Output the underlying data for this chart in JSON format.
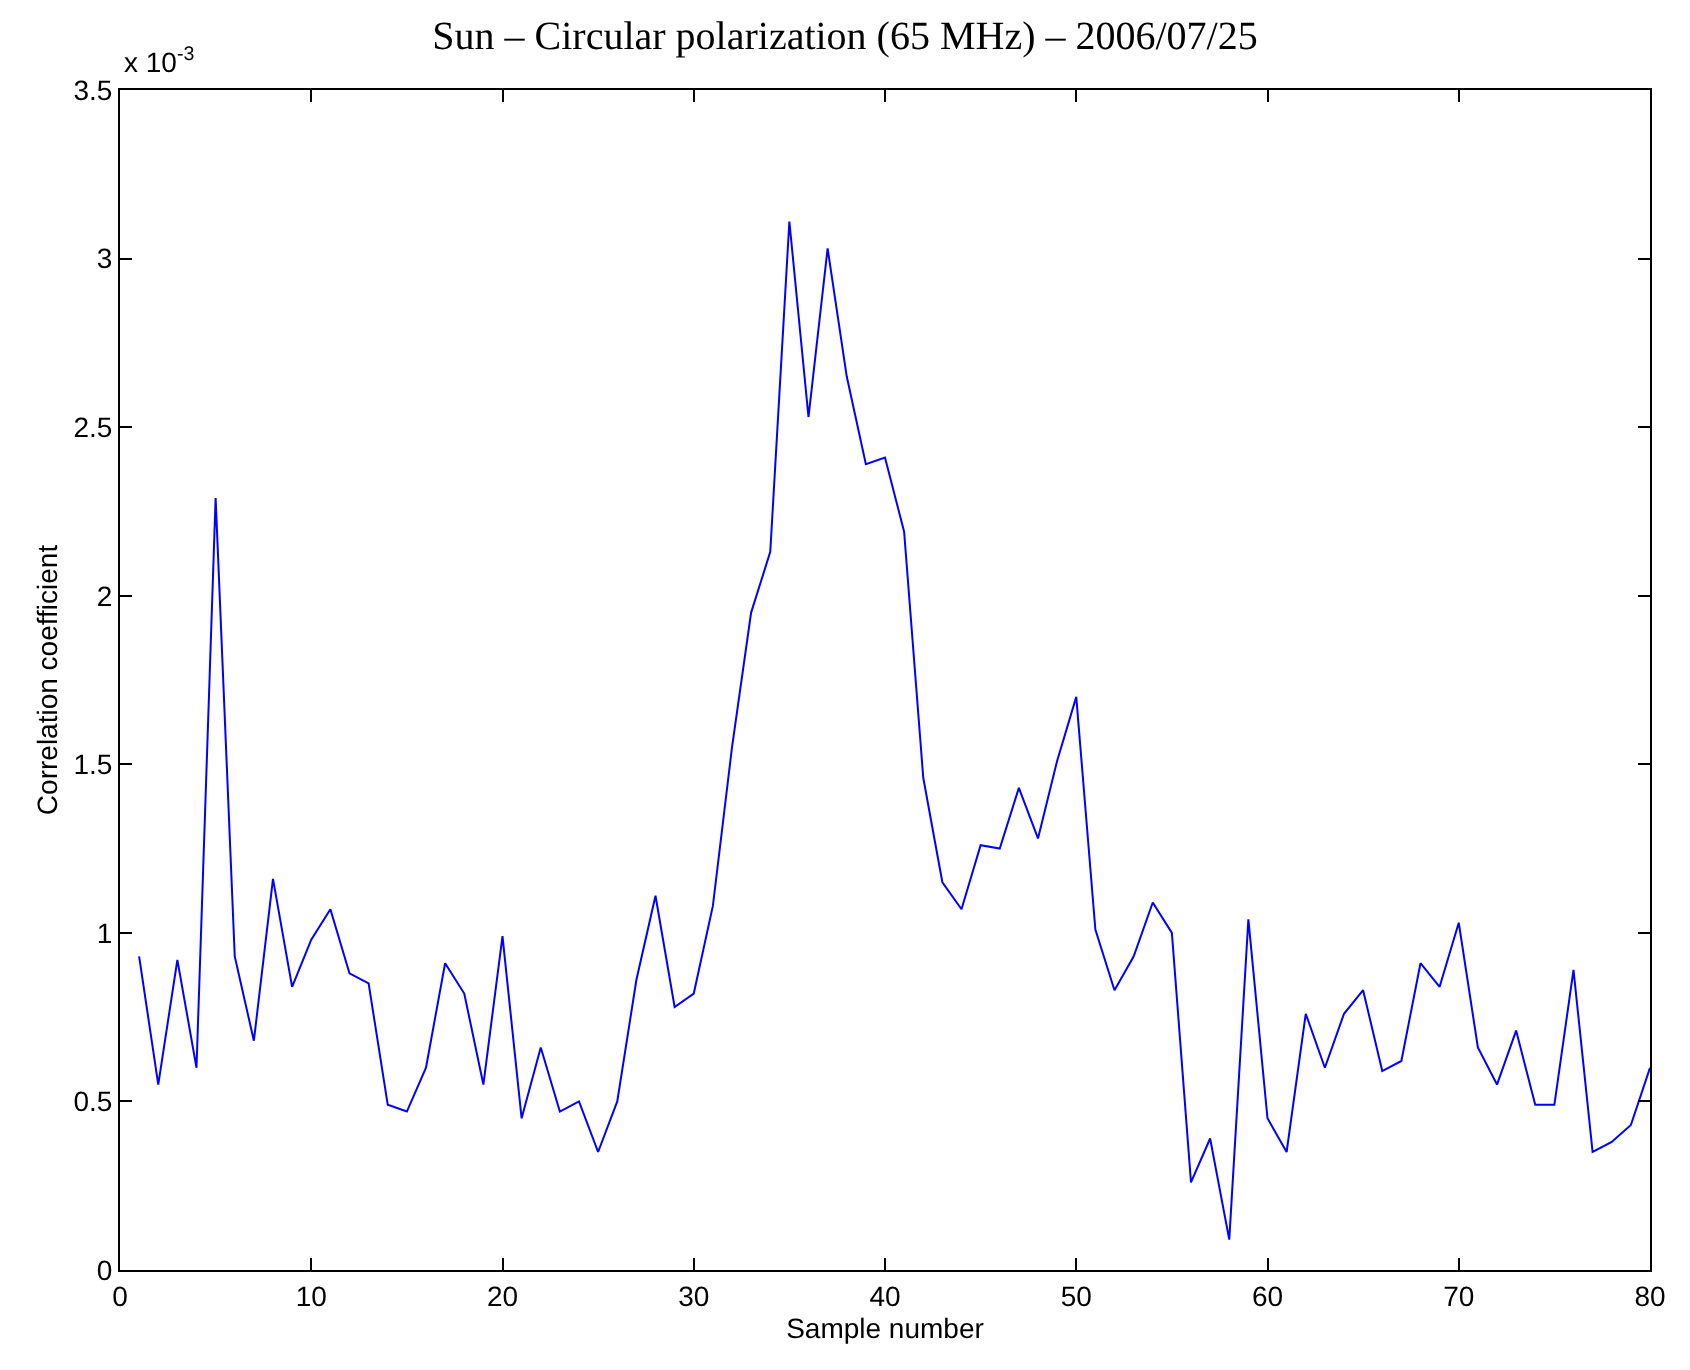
{
  "chart_data": {
    "type": "line",
    "title": "Sun – Circular polarization (65 MHz) – 2006/07/25",
    "xlabel": "Sample number",
    "ylabel": "Correlation coefficient",
    "annotations": [
      "x 10$^{-3}$"
    ],
    "x": [
      1,
      2,
      3,
      4,
      5,
      6,
      7,
      8,
      9,
      10,
      11,
      12,
      13,
      14,
      15,
      16,
      17,
      18,
      19,
      20,
      21,
      22,
      23,
      24,
      25,
      26,
      27,
      28,
      29,
      30,
      31,
      32,
      33,
      34,
      35,
      36,
      37,
      38,
      39,
      40,
      41,
      42,
      43,
      44,
      45,
      46,
      47,
      48,
      49,
      50,
      51,
      52,
      53,
      54,
      55,
      56,
      57,
      58,
      59,
      60,
      61,
      62,
      63,
      64,
      65,
      66,
      67,
      68,
      69,
      70,
      71,
      72,
      73,
      74,
      75,
      76,
      77,
      78,
      79,
      80
    ],
    "series": [
      {
        "color": "#0000ff",
        "values": [
          0.93,
          0.55,
          0.92,
          0.6,
          2.29,
          0.93,
          0.68,
          1.16,
          0.84,
          0.98,
          1.07,
          0.88,
          0.85,
          0.49,
          0.47,
          0.6,
          0.91,
          0.82,
          0.55,
          0.99,
          0.45,
          0.66,
          0.47,
          0.5,
          0.35,
          0.5,
          0.86,
          1.11,
          0.78,
          0.82,
          1.08,
          1.55,
          1.95,
          2.13,
          3.11,
          2.53,
          3.03,
          2.65,
          2.39,
          2.41,
          2.19,
          1.46,
          1.15,
          1.07,
          1.26,
          1.25,
          1.43,
          1.28,
          1.51,
          1.7,
          1.01,
          0.83,
          0.93,
          1.09,
          1.0,
          0.26,
          0.39,
          0.09,
          1.04,
          0.45,
          0.35,
          0.76,
          0.6,
          0.76,
          0.83,
          0.59,
          0.62,
          0.91,
          0.84,
          1.03,
          0.66,
          0.55,
          0.71,
          0.49,
          0.49,
          0.89,
          0.35,
          0.38,
          0.43,
          0.6
        ]
      }
    ],
    "xlim": [
      0,
      80
    ],
    "xticks": [
      0,
      10,
      20,
      30,
      40,
      50,
      60,
      70,
      80
    ],
    "ylim": [
      0,
      3.5
    ],
    "yticks": [
      0,
      0.5,
      1,
      1.5,
      2,
      2.5,
      3,
      3.5
    ],
    "marker": "none",
    "line_style": "solid"
  }
}
